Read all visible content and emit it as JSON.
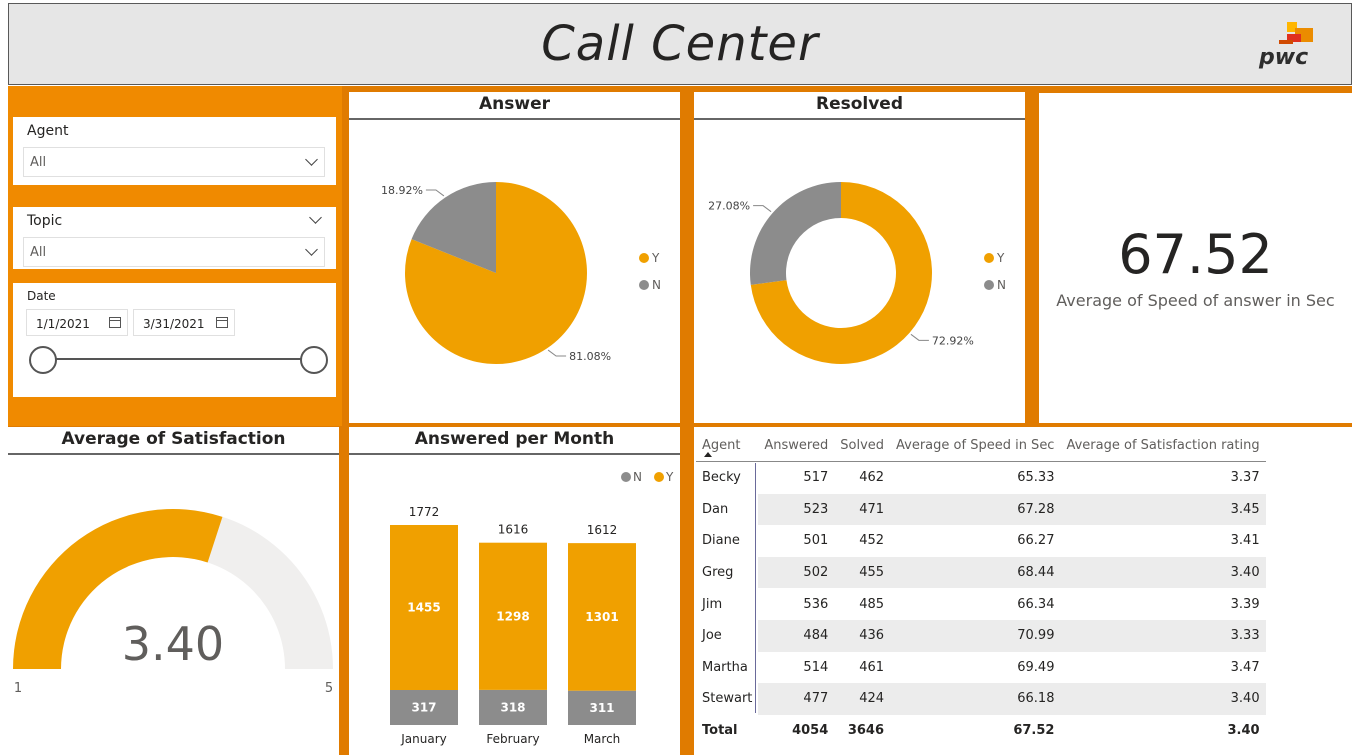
{
  "header": {
    "title": "Call Center",
    "logo_text": "pwc"
  },
  "filters": {
    "agent": {
      "label": "Agent",
      "value": "All"
    },
    "topic": {
      "label": "Topic",
      "value": "All"
    },
    "date": {
      "label": "Date",
      "start": "1/1/2021",
      "end": "3/31/2021"
    }
  },
  "answer_panel": {
    "title": "Answer"
  },
  "resolved_panel": {
    "title": "Resolved"
  },
  "kpi": {
    "value": "67.52",
    "label": "Average of Speed of answer in Sec"
  },
  "satisfaction_panel": {
    "title": "Average of Satisfaction",
    "min_label": "1",
    "max_label": "5"
  },
  "monthly_panel": {
    "title": "Answered per Month"
  },
  "table": {
    "columns": [
      "Agent",
      "Answered",
      "Solved",
      "Average of Speed in Sec",
      "Average of Satisfaction rating"
    ],
    "rows": [
      [
        "Becky",
        "517",
        "462",
        "65.33",
        "3.37"
      ],
      [
        "Dan",
        "523",
        "471",
        "67.28",
        "3.45"
      ],
      [
        "Diane",
        "501",
        "452",
        "66.27",
        "3.41"
      ],
      [
        "Greg",
        "502",
        "455",
        "68.44",
        "3.40"
      ],
      [
        "Jim",
        "536",
        "485",
        "66.34",
        "3.39"
      ],
      [
        "Joe",
        "484",
        "436",
        "70.99",
        "3.33"
      ],
      [
        "Martha",
        "514",
        "461",
        "69.49",
        "3.47"
      ],
      [
        "Stewart",
        "477",
        "424",
        "66.18",
        "3.40"
      ]
    ],
    "total": [
      "Total",
      "4054",
      "3646",
      "67.52",
      "3.40"
    ]
  },
  "colors": {
    "yes": "#f0a000",
    "no": "#8c8c8c",
    "orange_bg": "#e07b00",
    "gauge_track": "#f0efee"
  },
  "chart_data": [
    {
      "type": "pie",
      "title": "Answer",
      "labels": [
        "Y",
        "N"
      ],
      "values": [
        81.08,
        18.92
      ],
      "value_labels": [
        "81.08%",
        "18.92%"
      ],
      "legend": "right"
    },
    {
      "type": "pie",
      "subtype": "donut",
      "title": "Resolved",
      "labels": [
        "Y",
        "N"
      ],
      "values": [
        72.92,
        27.08
      ],
      "value_labels": [
        "72.92%",
        "27.08%"
      ],
      "legend": "right"
    },
    {
      "type": "bar",
      "subtype": "gauge",
      "title": "Average of Satisfaction",
      "value": 3.4,
      "value_label": "3.40",
      "min": 1,
      "max": 5
    },
    {
      "type": "bar",
      "subtype": "stacked",
      "title": "Answered per Month",
      "categories": [
        "January",
        "February",
        "March"
      ],
      "series": [
        {
          "name": "N",
          "values": [
            317,
            318,
            311
          ]
        },
        {
          "name": "Y",
          "values": [
            1455,
            1298,
            1301
          ]
        }
      ],
      "totals": [
        1772,
        1616,
        1612
      ],
      "legend": "top-right"
    }
  ]
}
